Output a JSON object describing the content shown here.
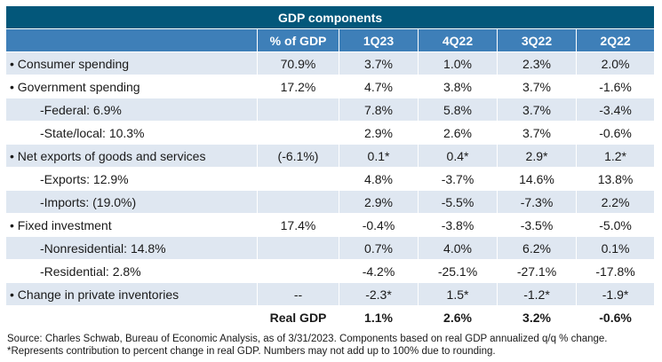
{
  "chart_data": {
    "type": "table",
    "title": "GDP components",
    "columns": [
      "",
      "% of GDP",
      "1Q23",
      "4Q22",
      "3Q22",
      "2Q22"
    ],
    "rows": [
      {
        "label": "• Consumer spending",
        "indent": false,
        "share": "70.9%",
        "values": [
          "3.7%",
          "1.0%",
          "2.3%",
          "2.0%"
        ]
      },
      {
        "label": "• Government spending",
        "indent": false,
        "share": "17.2%",
        "values": [
          "4.7%",
          "3.8%",
          "3.7%",
          "-1.6%"
        ]
      },
      {
        "label": "-Federal: 6.9%",
        "indent": true,
        "share": "",
        "values": [
          "7.8%",
          "5.8%",
          "3.7%",
          "-3.4%"
        ]
      },
      {
        "label": "-State/local: 10.3%",
        "indent": true,
        "share": "",
        "values": [
          "2.9%",
          "2.6%",
          "3.7%",
          "-0.6%"
        ]
      },
      {
        "label": "• Net exports of goods and services",
        "indent": false,
        "share": "(-6.1%)",
        "values": [
          "0.1*",
          "0.4*",
          "2.9*",
          "1.2*"
        ]
      },
      {
        "label": "-Exports: 12.9%",
        "indent": true,
        "share": "",
        "values": [
          "4.8%",
          "-3.7%",
          "14.6%",
          "13.8%"
        ]
      },
      {
        "label": "-Imports: (19.0%)",
        "indent": true,
        "share": "",
        "values": [
          "2.9%",
          "-5.5%",
          "-7.3%",
          "2.2%"
        ]
      },
      {
        "label": "• Fixed investment",
        "indent": false,
        "share": "17.4%",
        "values": [
          "-0.4%",
          "-3.8%",
          "-3.5%",
          "-5.0%"
        ]
      },
      {
        "label": "-Nonresidential: 14.8%",
        "indent": true,
        "share": "",
        "values": [
          "0.7%",
          "4.0%",
          "6.2%",
          "0.1%"
        ]
      },
      {
        "label": "-Residential: 2.8%",
        "indent": true,
        "share": "",
        "values": [
          "-4.2%",
          "-25.1%",
          "-27.1%",
          "-17.8%"
        ]
      },
      {
        "label": "• Change in private inventories",
        "indent": false,
        "share": "--",
        "values": [
          "-2.3*",
          "1.5*",
          "-1.2*",
          "-1.9*"
        ]
      }
    ],
    "total": {
      "label": "Real GDP",
      "values": [
        "1.1%",
        "2.6%",
        "3.2%",
        "-0.6%"
      ]
    }
  },
  "notes": {
    "source": "Source: Charles Schwab, Bureau of Economic Analysis, as of 3/31/2023. Components based on real GDP annualized q/q % change.",
    "footnote": "*Represents contribution to percent change in real GDP. Numbers may not add up to 100% due to rounding."
  },
  "colors": {
    "title_bg": "#03577a",
    "header_bg": "#3e7fb8",
    "row_shade": "#dfe7f1",
    "row_plain": "#ffffff"
  }
}
